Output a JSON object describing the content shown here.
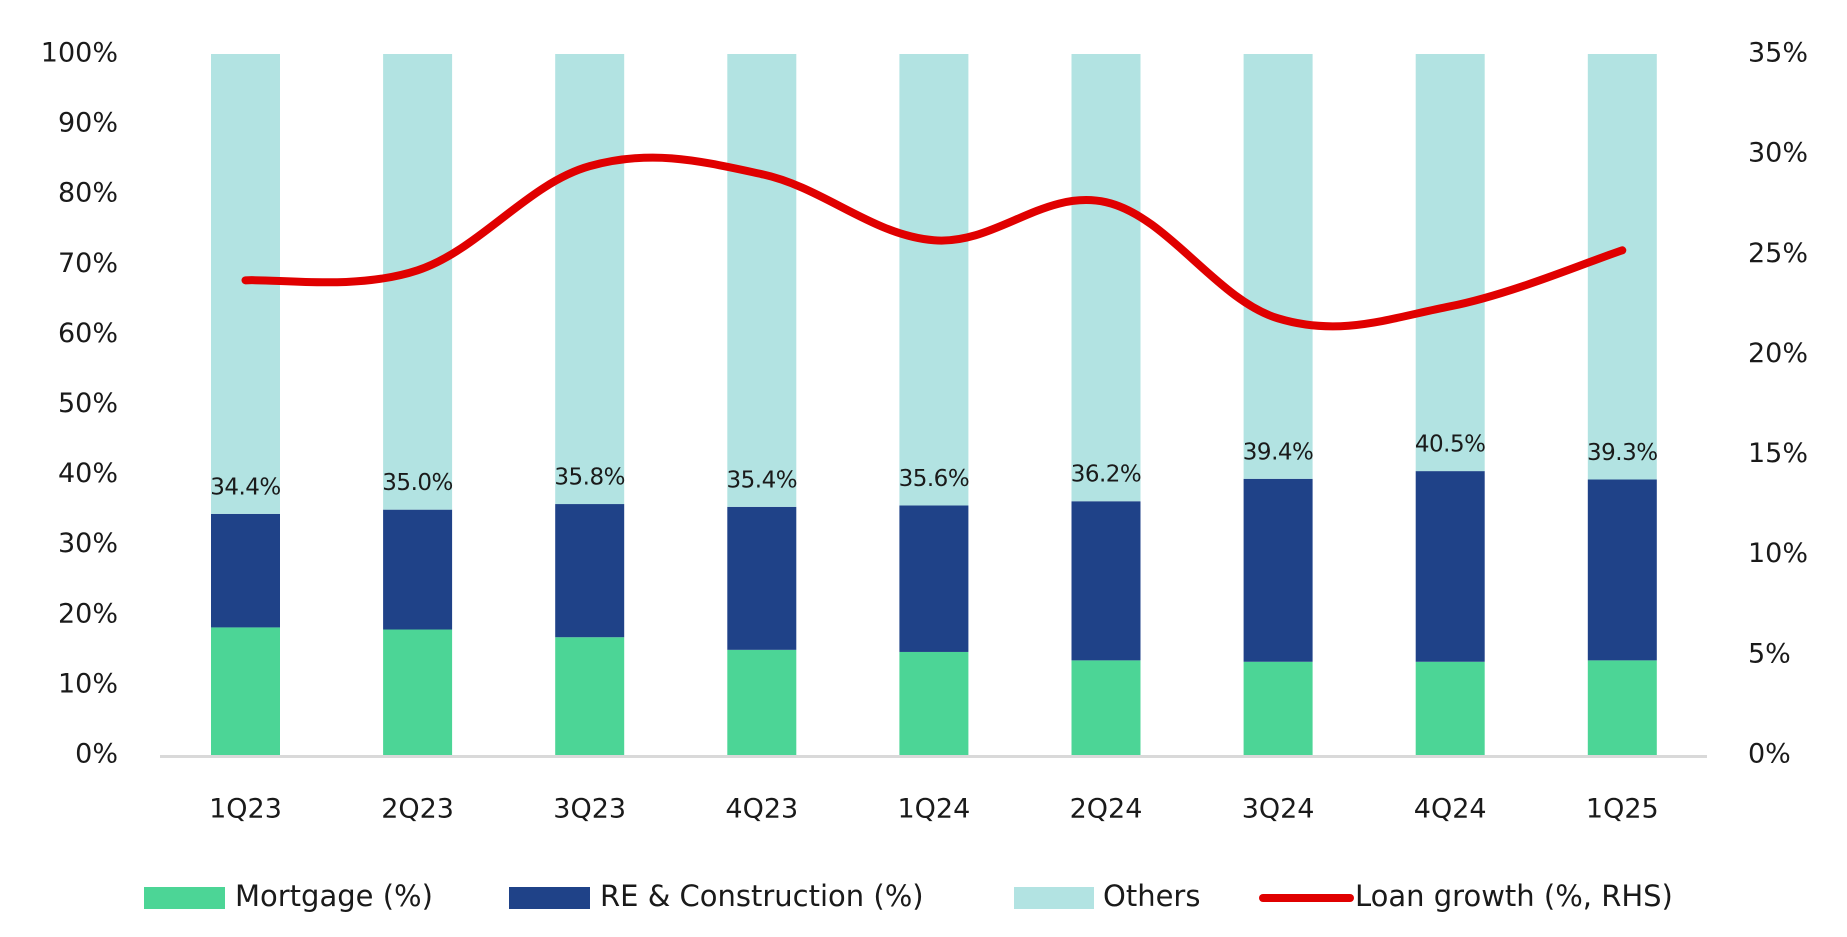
{
  "chart_data": {
    "type": "bar",
    "subtype": "stacked-bar-with-line",
    "title": "",
    "xlabel": "",
    "ylabel": "",
    "ylabel_right": "",
    "categories": [
      "1Q23",
      "2Q23",
      "3Q23",
      "4Q23",
      "1Q24",
      "2Q24",
      "3Q24",
      "4Q24",
      "1Q25"
    ],
    "series": [
      {
        "name": "Mortgage (%)",
        "type": "bar",
        "axis": "left",
        "color": "#4CD596",
        "values": [
          18.2,
          17.9,
          16.8,
          15.0,
          14.7,
          13.5,
          13.3,
          13.3,
          13.5
        ]
      },
      {
        "name": "RE & Construction (%)",
        "type": "bar",
        "axis": "left",
        "color": "#1F4288",
        "values": [
          16.2,
          17.1,
          19.0,
          20.4,
          20.9,
          22.7,
          26.1,
          27.2,
          25.8
        ]
      },
      {
        "name": "Others",
        "type": "bar",
        "axis": "left",
        "color": "#B2E3E2",
        "values": [
          65.6,
          65.0,
          64.2,
          64.6,
          64.4,
          63.8,
          60.6,
          59.5,
          60.7
        ]
      },
      {
        "name": "Loan growth (%, RHS)",
        "type": "line",
        "axis": "right",
        "color": "#E00000",
        "values": [
          23.7,
          24.2,
          29.4,
          29.0,
          25.7,
          27.6,
          21.8,
          22.4,
          25.2
        ]
      }
    ],
    "data_labels": [
      "34.4%",
      "35.0%",
      "35.8%",
      "35.4%",
      "35.6%",
      "36.2%",
      "39.4%",
      "40.5%",
      "39.3%"
    ],
    "data_label_values": [
      34.4,
      35.0,
      35.8,
      35.4,
      35.6,
      36.2,
      39.4,
      40.5,
      39.3
    ],
    "ylim": [
      0,
      100
    ],
    "ylim_right": [
      0,
      35
    ],
    "yticks": [
      0,
      10,
      20,
      30,
      40,
      50,
      60,
      70,
      80,
      90,
      100
    ],
    "ytick_labels": [
      "0%",
      "10%",
      "20%",
      "30%",
      "40%",
      "50%",
      "60%",
      "70%",
      "80%",
      "90%",
      "100%"
    ],
    "yticks_right": [
      0,
      5,
      10,
      15,
      20,
      25,
      30,
      35
    ],
    "ytick_labels_right": [
      "0%",
      "5%",
      "10%",
      "15%",
      "20%",
      "25%",
      "30%",
      "35%"
    ],
    "grid": false,
    "legend_position": "bottom"
  }
}
